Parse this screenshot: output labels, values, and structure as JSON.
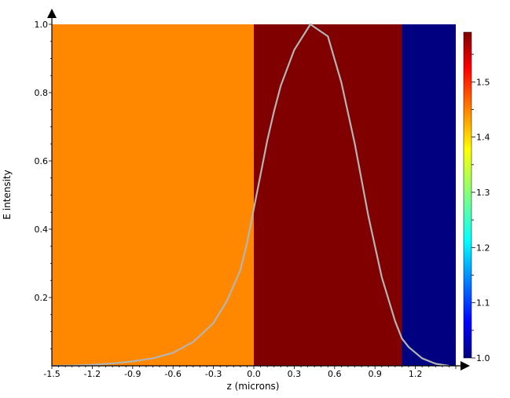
{
  "chart_data": {
    "type": "line",
    "xlabel": "z (microns)",
    "ylabel": "E intensity",
    "xlim": [
      -1.5,
      1.5
    ],
    "ylim": [
      0,
      1.0
    ],
    "x_ticks": [
      "-1.5",
      "-1.2",
      "-0.9",
      "-0.6",
      "-0.3",
      "0.0",
      "0.3",
      "0.6",
      "0.9",
      "1.2"
    ],
    "y_ticks": [
      "0.2",
      "0.4",
      "0.6",
      "0.8",
      "1.0"
    ],
    "regions": [
      {
        "x_start": -1.5,
        "x_end": 0.0,
        "index": 1.45,
        "color": "#ff8800"
      },
      {
        "x_start": 0.0,
        "x_end": 1.1,
        "index": 1.59,
        "color": "#800000"
      },
      {
        "x_start": 1.1,
        "x_end": 1.5,
        "index": 1.0,
        "color": "#000080"
      }
    ],
    "series": [
      {
        "color": "#b4b4b4",
        "x": [
          -1.5,
          -1.35,
          -1.2,
          -1.05,
          -0.9,
          -0.75,
          -0.6,
          -0.45,
          -0.3,
          -0.2,
          -0.1,
          -0.05,
          0.0,
          0.05,
          0.1,
          0.15,
          0.2,
          0.3,
          0.42,
          0.55,
          0.65,
          0.75,
          0.85,
          0.95,
          1.05,
          1.1,
          1.15,
          1.25,
          1.35,
          1.45
        ],
        "y": [
          0.0,
          0.001,
          0.003,
          0.007,
          0.013,
          0.022,
          0.038,
          0.07,
          0.125,
          0.19,
          0.28,
          0.36,
          0.46,
          0.56,
          0.66,
          0.745,
          0.82,
          0.925,
          1.0,
          0.965,
          0.83,
          0.65,
          0.44,
          0.26,
          0.13,
          0.08,
          0.055,
          0.022,
          0.006,
          0.0
        ]
      }
    ],
    "colorbar": {
      "min": 1.0,
      "max": 1.59,
      "ticks": [
        "1.0",
        "1.1",
        "1.2",
        "1.3",
        "1.4",
        "1.5"
      ],
      "colormap": "jet"
    }
  }
}
